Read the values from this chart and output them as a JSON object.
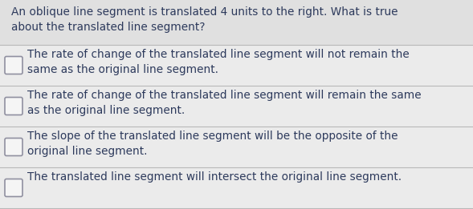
{
  "background_color": "#e8e8e8",
  "question": "An oblique line segment is translated 4 units to the right. What is true\nabout the translated line segment?",
  "options": [
    "The rate of change of the translated line segment will not remain the\nsame as the original line segment.",
    "The rate of change of the translated line segment will remain the same\nas the original line segment.",
    "The slope of the translated line segment will be the opposite of the\noriginal line segment.",
    "The translated line segment will intersect the original line segment."
  ],
  "question_fontsize": 9.8,
  "option_fontsize": 9.8,
  "text_color": "#2d3a5c",
  "option_bg_color": "#ebebeb",
  "divider_color": "#b8b8b8",
  "checkbox_edge_color": "#9090a0",
  "question_bg_color": "#e0e0e0",
  "fig_width": 5.89,
  "fig_height": 2.61,
  "dpi": 100
}
